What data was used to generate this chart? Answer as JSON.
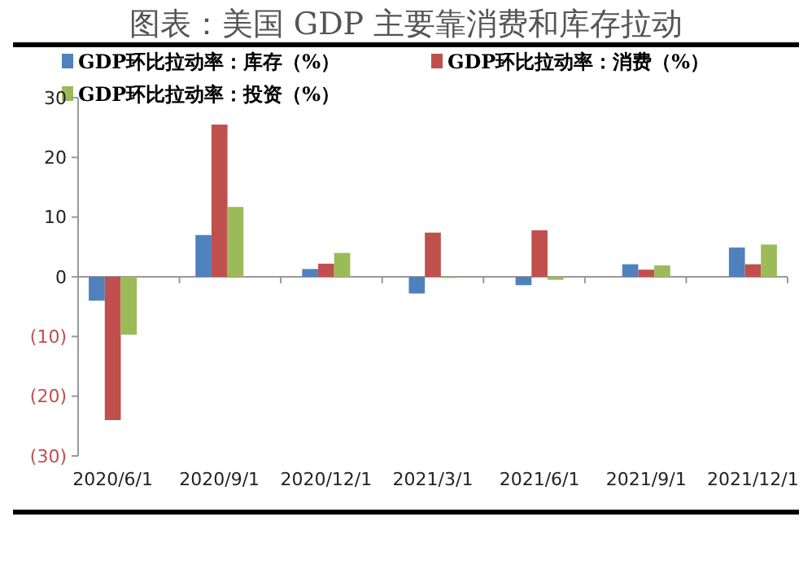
{
  "chart_data": {
    "type": "bar",
    "title": "图表：美国 GDP 主要靠消费和库存拉动",
    "categories": [
      "2020/6/1",
      "2020/9/1",
      "2020/12/1",
      "2021/3/1",
      "2021/6/1",
      "2021/9/1",
      "2021/12/1"
    ],
    "series": [
      {
        "name": "GDP环比拉动率：库存（%）",
        "color": "#4f81bd",
        "values": [
          -4,
          7,
          1.3,
          -2.8,
          -1.4,
          2.1,
          4.9
        ]
      },
      {
        "name": "GDP环比拉动率：消费（%）",
        "color": "#c0504d",
        "values": [
          -24,
          25.5,
          2.2,
          7.4,
          7.8,
          1.2,
          2.1
        ]
      },
      {
        "name": "GDP环比拉动率：投资（%）",
        "color": "#9bbb59",
        "values": [
          -9.7,
          11.7,
          4,
          -0.2,
          -0.5,
          1.9,
          5.4
        ]
      }
    ],
    "ylim": [
      -30,
      30
    ],
    "yticks": [
      30,
      20,
      10,
      0,
      {
        "value": -10,
        "label": "(10)"
      },
      {
        "value": -20,
        "label": "(20)"
      },
      {
        "value": -30,
        "label": "(30)"
      }
    ],
    "legend": "top"
  }
}
